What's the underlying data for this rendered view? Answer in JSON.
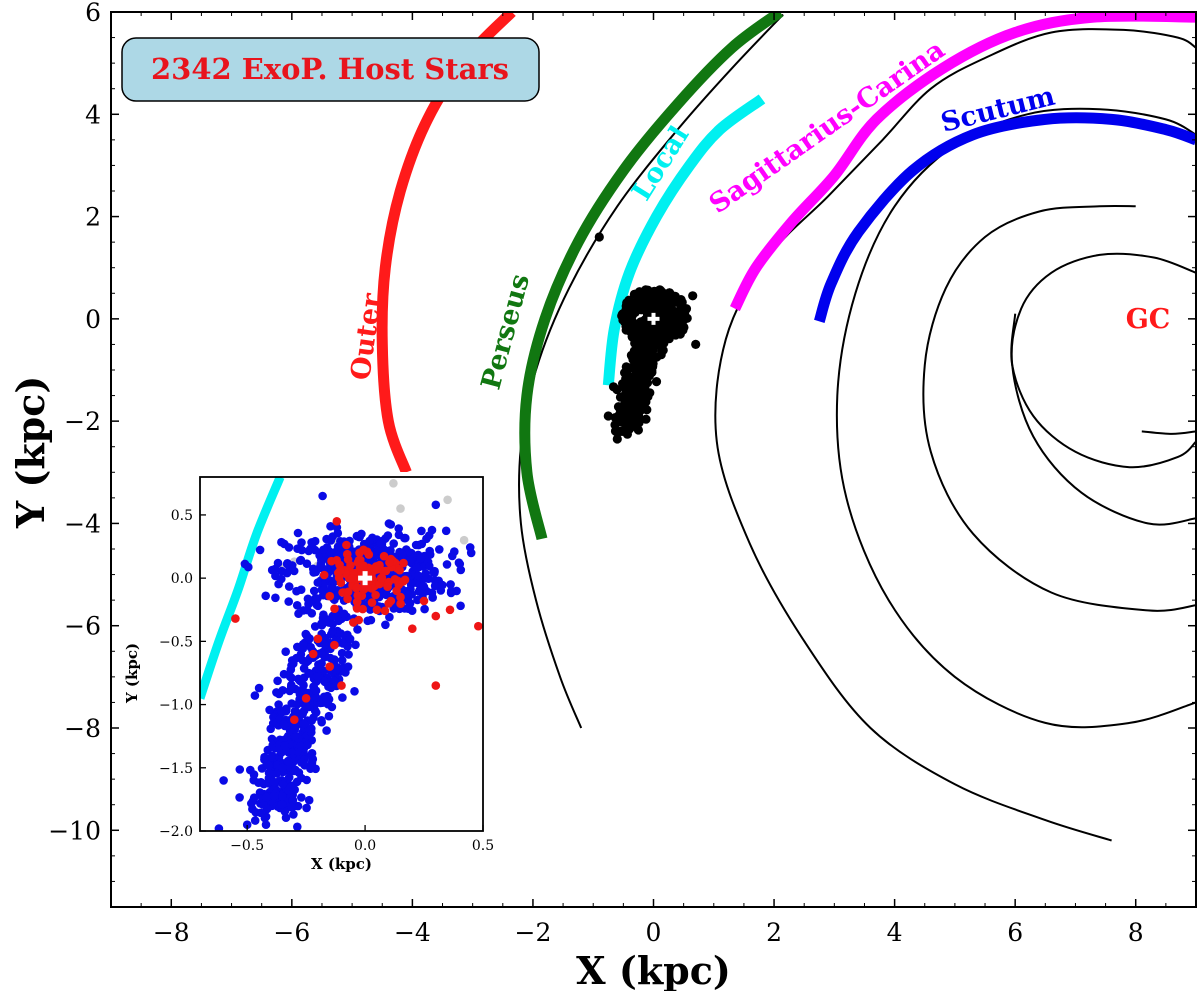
{
  "chart_data": {
    "type": "scatter",
    "xlabel": "X (kpc)",
    "ylabel": "Y (kpc)",
    "xlim": [
      -9,
      9
    ],
    "ylim": [
      -11.5,
      6
    ],
    "xticks": [
      -8,
      -6,
      -4,
      -2,
      0,
      2,
      4,
      6,
      8
    ],
    "yticks": [
      -10,
      -8,
      -6,
      -4,
      -2,
      0,
      2,
      4,
      6
    ],
    "xtick_labels": [
      "−8",
      "−6",
      "−4",
      "−2",
      "0",
      "2",
      "4",
      "6",
      "8"
    ],
    "ytick_labels": [
      "−10",
      "−8",
      "−6",
      "−4",
      "−2",
      "0",
      "2",
      "4",
      "6"
    ],
    "grid": false,
    "badge": {
      "text": "2342 ExoP. Host Stars",
      "bg": "#add8e6",
      "color": "#e8141c"
    },
    "arms": [
      {
        "name": "Outer",
        "color": "#ff1a1a",
        "points": [
          [
            -4.1,
            -3.0
          ],
          [
            -4.4,
            -2.0
          ],
          [
            -4.5,
            -0.5
          ],
          [
            -4.45,
            1.0
          ],
          [
            -4.2,
            2.5
          ],
          [
            -3.75,
            3.9
          ],
          [
            -3.1,
            5.1
          ],
          [
            -2.35,
            6.0
          ]
        ]
      },
      {
        "name": "Perseus",
        "color": "#117711",
        "points": [
          [
            -1.85,
            -4.3
          ],
          [
            -2.1,
            -3.0
          ],
          [
            -2.1,
            -1.5
          ],
          [
            -1.8,
            0.0
          ],
          [
            -1.25,
            1.5
          ],
          [
            -0.5,
            2.9
          ],
          [
            0.4,
            4.2
          ],
          [
            1.3,
            5.3
          ],
          [
            2.1,
            6.0
          ]
        ]
      },
      {
        "name": "Local",
        "color": "#00f0f0",
        "points": [
          [
            -0.75,
            -1.3
          ],
          [
            -0.65,
            -0.2
          ],
          [
            -0.4,
            0.9
          ],
          [
            0.05,
            2.0
          ],
          [
            0.6,
            3.0
          ],
          [
            1.1,
            3.7
          ],
          [
            1.8,
            4.3
          ]
        ]
      },
      {
        "name": "Sagittarius-Carina",
        "color": "#ff00ff",
        "points": [
          [
            1.35,
            0.2
          ],
          [
            1.7,
            1.0
          ],
          [
            2.3,
            1.9
          ],
          [
            3.0,
            2.8
          ],
          [
            3.7,
            3.9
          ],
          [
            4.8,
            4.9
          ],
          [
            6.0,
            5.6
          ],
          [
            7.3,
            5.9
          ],
          [
            9.0,
            5.9
          ]
        ]
      },
      {
        "name": "Scutum",
        "color": "#0000ee",
        "points": [
          [
            2.75,
            -0.05
          ],
          [
            2.95,
            0.7
          ],
          [
            3.4,
            1.7
          ],
          [
            4.3,
            2.9
          ],
          [
            5.3,
            3.6
          ],
          [
            6.5,
            3.9
          ],
          [
            7.6,
            3.9
          ],
          [
            8.5,
            3.7
          ],
          [
            9.0,
            3.5
          ]
        ]
      }
    ],
    "arm_labels": [
      {
        "text": "Outer",
        "color": "#ff1a1a"
      },
      {
        "text": "Perseus",
        "color": "#117711"
      },
      {
        "text": "Local",
        "color": "#00f0f0"
      },
      {
        "text": "Sagittarius-Carina",
        "color": "#ff00ff"
      },
      {
        "text": "Scutum",
        "color": "#0000ee"
      },
      {
        "text": "GC",
        "color": "#ff1a1a"
      }
    ],
    "spiral_curves": [
      [
        [
          -1.2,
          -8.0
        ],
        [
          -1.55,
          -7.0
        ],
        [
          -1.95,
          -5.5
        ],
        [
          -2.2,
          -4.0
        ],
        [
          -2.2,
          -2.5
        ],
        [
          -1.95,
          -1.0
        ],
        [
          -1.4,
          0.6
        ],
        [
          -0.6,
          2.2
        ],
        [
          0.4,
          3.7
        ],
        [
          1.3,
          4.9
        ],
        [
          2.15,
          5.95
        ]
      ],
      [
        [
          7.6,
          -10.2
        ],
        [
          6.5,
          -9.8
        ],
        [
          5.0,
          -9.1
        ],
        [
          3.6,
          -8.0
        ],
        [
          2.5,
          -6.3
        ],
        [
          1.6,
          -4.4
        ],
        [
          1.05,
          -2.4
        ],
        [
          1.2,
          -0.4
        ],
        [
          1.9,
          1.2
        ],
        [
          2.9,
          2.4
        ],
        [
          3.8,
          3.5
        ],
        [
          4.6,
          4.5
        ],
        [
          5.5,
          5.1
        ],
        [
          6.6,
          5.6
        ],
        [
          7.8,
          5.65
        ],
        [
          8.7,
          5.5
        ],
        [
          9.0,
          5.3
        ]
      ],
      [
        [
          9.0,
          -7.5
        ],
        [
          7.9,
          -7.9
        ],
        [
          6.5,
          -7.9
        ],
        [
          5.0,
          -7.0
        ],
        [
          3.9,
          -5.5
        ],
        [
          3.2,
          -3.5
        ],
        [
          3.05,
          -1.5
        ],
        [
          3.35,
          0.5
        ],
        [
          4.0,
          2.2
        ],
        [
          5.0,
          3.4
        ],
        [
          6.2,
          4.0
        ],
        [
          7.4,
          4.1
        ],
        [
          8.5,
          3.9
        ],
        [
          9.0,
          3.6
        ]
      ],
      [
        [
          9.0,
          -5.6
        ],
        [
          8.2,
          -5.7
        ],
        [
          6.6,
          -5.35
        ],
        [
          5.3,
          -4.2
        ],
        [
          4.6,
          -2.6
        ],
        [
          4.5,
          -0.9
        ],
        [
          4.85,
          0.6
        ],
        [
          5.5,
          1.6
        ],
        [
          6.4,
          2.1
        ],
        [
          7.4,
          2.2
        ],
        [
          8.0,
          2.2
        ]
      ],
      [
        [
          9.0,
          -3.9
        ],
        [
          8.2,
          -4.0
        ],
        [
          7.1,
          -3.4
        ],
        [
          6.3,
          -2.3
        ],
        [
          5.95,
          -0.9
        ],
        [
          6.1,
          0.2
        ],
        [
          6.6,
          0.9
        ],
        [
          7.4,
          1.25
        ],
        [
          8.3,
          1.2
        ],
        [
          9.0,
          0.9
        ]
      ],
      [
        [
          6.0,
          0.1
        ],
        [
          5.95,
          -0.9
        ],
        [
          6.3,
          -1.9
        ],
        [
          7.0,
          -2.6
        ],
        [
          7.9,
          -2.9
        ],
        [
          8.7,
          -2.7
        ],
        [
          9.0,
          -2.4
        ]
      ],
      [
        [
          8.1,
          -2.2
        ],
        [
          8.6,
          -2.25
        ],
        [
          9.0,
          -2.2
        ]
      ]
    ],
    "sun": [
      0,
      0
    ],
    "outlier": [
      -0.9,
      1.6
    ],
    "cluster_note": "black dots: all host stars (clump around Sun plus tail toward (-0.4,-2.1))",
    "inset": {
      "xlabel": "X (kpc)",
      "ylabel": "Y (kpc)",
      "xlim": [
        -0.7,
        0.5
      ],
      "ylim": [
        -2.0,
        0.8
      ],
      "xticks": [
        -0.5,
        0.0,
        0.5
      ],
      "yticks": [
        -2.0,
        -1.5,
        -1.0,
        -0.5,
        0.0,
        0.5
      ],
      "xtick_labels": [
        "−0.5",
        "0.0",
        "0.5"
      ],
      "ytick_labels": [
        "−2.0",
        "−1.5",
        "−1.0",
        "−0.5",
        "0.0",
        "0.5"
      ],
      "colors": {
        "blue": "#0a0ae6",
        "red": "#ee1515",
        "gray": "#cccccc",
        "arm": "#00f0f0"
      },
      "local_arm": [
        [
          -0.7,
          -0.95
        ],
        [
          -0.62,
          -0.5
        ],
        [
          -0.54,
          -0.1
        ],
        [
          -0.46,
          0.35
        ],
        [
          -0.36,
          0.8
        ]
      ]
    }
  }
}
